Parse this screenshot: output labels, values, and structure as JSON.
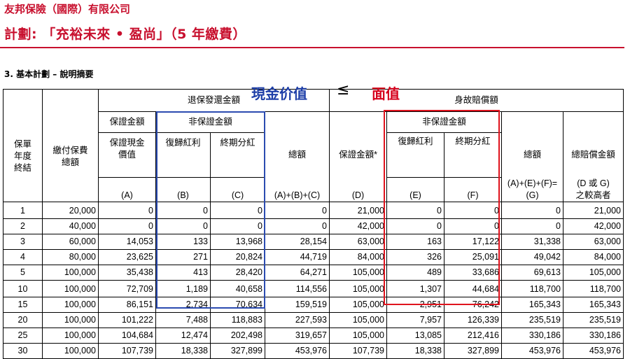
{
  "company_name": "友邦保險（國際）有限公司",
  "plan_title": "計劃: 「充裕未來 • 盈尚」（5 年繳費）",
  "section_title": "3.  基本計劃 – 說明摘要",
  "annotations": {
    "cash_value": "現金价值",
    "arrow": "≤",
    "face_value": "面值"
  },
  "headers": {
    "year": "保單\n年度\n終結",
    "premium": "繳付保費\n總額",
    "surrender_group": "退保發還金額",
    "death_group": "身故賠償額",
    "guaranteed_group": "保證金額",
    "non_guaranteed_group": "非保證金額",
    "non_guaranteed_group_death": "非保證金額",
    "col_A": "保證現金\n價值",
    "col_B": "復歸紅利",
    "col_C": "終期分紅",
    "col_total_surrender": "總額",
    "col_D": "保證金額*",
    "col_E": "復歸紅利",
    "col_F": "終期分紅",
    "col_G": "總額",
    "col_death_total": "總賠償金額",
    "label_A": "(A)",
    "label_B": "(B)",
    "label_C": "(C)",
    "label_ABC": "(A)+(B)+(C)",
    "label_D": "(D)",
    "label_E": "(E)",
    "label_F": "(F)",
    "label_G": "(A)+(E)+(F)=\n(G)",
    "label_DG": "(D 或 G)\n之較高者"
  },
  "rows": [
    {
      "year": "1",
      "premium": "20,000",
      "a": "0",
      "b": "0",
      "c": "0",
      "abc": "0",
      "d": "21,000",
      "e": "0",
      "f": "0",
      "g": "0",
      "total": "21,000"
    },
    {
      "year": "2",
      "premium": "40,000",
      "a": "0",
      "b": "0",
      "c": "0",
      "abc": "0",
      "d": "42,000",
      "e": "0",
      "f": "0",
      "g": "0",
      "total": "42,000"
    },
    {
      "year": "3",
      "premium": "60,000",
      "a": "14,053",
      "b": "133",
      "c": "13,968",
      "abc": "28,154",
      "d": "63,000",
      "e": "163",
      "f": "17,122",
      "g": "31,338",
      "total": "63,000"
    },
    {
      "year": "4",
      "premium": "80,000",
      "a": "23,625",
      "b": "271",
      "c": "20,824",
      "abc": "44,719",
      "d": "84,000",
      "e": "326",
      "f": "25,091",
      "g": "49,042",
      "total": "84,000"
    },
    {
      "year": "5",
      "premium": "100,000",
      "a": "35,438",
      "b": "413",
      "c": "28,420",
      "abc": "64,271",
      "d": "105,000",
      "e": "489",
      "f": "33,686",
      "g": "69,613",
      "total": "105,000"
    },
    {
      "year": "10",
      "premium": "100,000",
      "a": "72,709",
      "b": "1,189",
      "c": "40,658",
      "abc": "114,556",
      "d": "105,000",
      "e": "1,307",
      "f": "44,684",
      "g": "118,700",
      "total": "118,700"
    },
    {
      "year": "15",
      "premium": "100,000",
      "a": "86,151",
      "b": "2,734",
      "c": "70,634",
      "abc": "159,519",
      "d": "105,000",
      "e": "2,951",
      "f": "76,242",
      "g": "165,343",
      "total": "165,343"
    },
    {
      "year": "20",
      "premium": "100,000",
      "a": "101,222",
      "b": "7,488",
      "c": "118,883",
      "abc": "227,593",
      "d": "105,000",
      "e": "7,957",
      "f": "126,339",
      "g": "235,519",
      "total": "235,519"
    },
    {
      "year": "25",
      "premium": "100,000",
      "a": "104,684",
      "b": "12,474",
      "c": "202,498",
      "abc": "319,657",
      "d": "105,000",
      "e": "13,085",
      "f": "212,416",
      "g": "330,186",
      "total": "330,186"
    },
    {
      "year": "30",
      "premium": "100,000",
      "a": "107,739",
      "b": "18,338",
      "c": "327,899",
      "abc": "453,976",
      "d": "107,739",
      "e": "18,338",
      "f": "327,899",
      "g": "453,976",
      "total": "453,976"
    }
  ],
  "colors": {
    "brand_red": "#c8102e",
    "annotation_blue": "#1e3fa8",
    "annotation_red": "#d6001c"
  }
}
